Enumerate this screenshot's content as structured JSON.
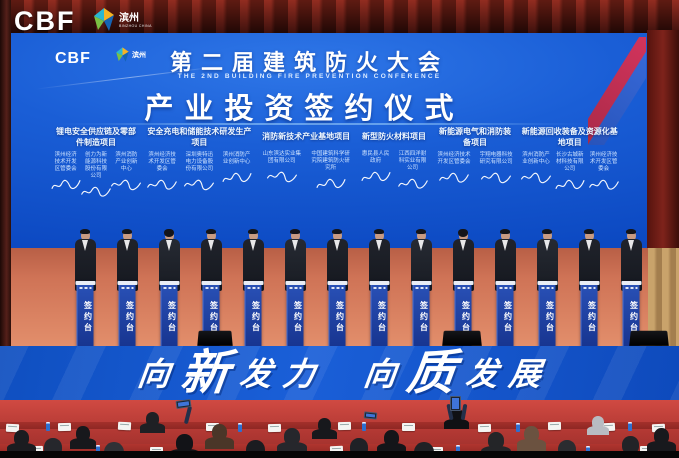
{
  "overlay": {
    "brand": "CBF",
    "logo_text": "滨州",
    "logo_subtext": "BINZHOU CHINA"
  },
  "screen": {
    "brand": "CBF",
    "logo_text": "滨州",
    "title_cn": "第二届建筑防火大会",
    "title_en": "THE 2ND BUILDING FIRE PREVENTION CONFERENCE",
    "subtitle": "产业投资签约仪式",
    "projects": [
      {
        "title": "锂电安全供应链及零部件制造项目",
        "entities": [
          "滨州经济技术开发区管委会",
          "创力为新能源科技股份有限公司",
          "滨州消防产业创新中心"
        ]
      },
      {
        "title": "安全充电和储能技术研发生产项目",
        "entities": [
          "滨州经济技术开发区管委会",
          "深圳奥特迅电力设备股份有限公司",
          "滨州消防产业创新中心"
        ]
      },
      {
        "title": "消防新技术产业基地项目",
        "entities": [
          "山东滨达实业集团有限公司",
          "中国建筑科学研究院建筑防火研究所"
        ]
      },
      {
        "title": "新型防火材料项目",
        "entities": [
          "惠民县人民政府",
          "江西四洋耐科实业有限公司"
        ]
      },
      {
        "title": "新能源电气和消防装备项目",
        "entities": [
          "滨州经济技术开发区管委会",
          "宇翔电器科技研究有限公司"
        ]
      },
      {
        "title": "新能源回收装备及资源化基地项目",
        "entities": [
          "滨州消防产业创新中心",
          "长沙古城新材科技有限公司",
          "滨州经济技术开发区管委会"
        ]
      }
    ]
  },
  "stage": {
    "podium_label": "签约台",
    "podium_count": 14
  },
  "banner": {
    "segments": [
      {
        "t": "向",
        "big": false
      },
      {
        "t": "新",
        "big": true
      },
      {
        "t": "发",
        "big": false
      },
      {
        "t": "力",
        "big": false
      },
      {
        "t": "",
        "gap": true
      },
      {
        "t": "向",
        "big": false
      },
      {
        "t": "质",
        "big": true
      },
      {
        "t": "发",
        "big": false
      },
      {
        "t": "展",
        "big": false
      }
    ]
  },
  "colors": {
    "screen_blue": "#1a5ed6",
    "banner_blue": "#1254c8",
    "stage_floor": "#d97f5f",
    "curtain_red": "#5a1612",
    "audience_red": "#b23833",
    "podium_blue": "#2246ac"
  }
}
